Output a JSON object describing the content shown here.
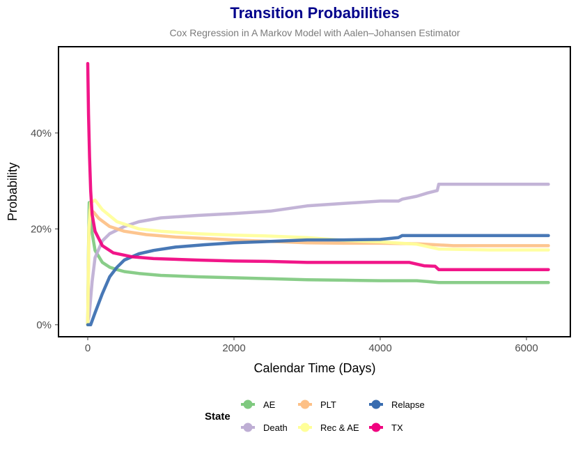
{
  "chart_data": {
    "type": "line",
    "title": "Transition Probabilities",
    "subtitle": "Cox Regression in A Markov Model with Aalen–Johansen Estimator",
    "xlabel": "Calendar Time (Days)",
    "ylabel": "Probability",
    "xlim": [
      -400,
      6600
    ],
    "ylim": [
      -0.025,
      0.58
    ],
    "x_ticks": [
      0,
      2000,
      4000,
      6000
    ],
    "x_tick_labels": [
      "0",
      "2000",
      "4000",
      "6000"
    ],
    "y_ticks": [
      0,
      0.2,
      0.4
    ],
    "y_tick_labels": [
      "0%",
      "20%",
      "40%"
    ],
    "grid": false,
    "legend": {
      "title": "State",
      "position": "bottom",
      "entries": [
        "AE",
        "Death",
        "PLT",
        "Rec & AE",
        "Relapse",
        "TX"
      ]
    },
    "series": [
      {
        "name": "AE",
        "color": "#7FC97F",
        "points": [
          [
            0,
            0.0
          ],
          [
            10,
            0.16
          ],
          [
            20,
            0.255
          ],
          [
            50,
            0.2
          ],
          [
            100,
            0.155
          ],
          [
            200,
            0.13
          ],
          [
            300,
            0.12
          ],
          [
            400,
            0.115
          ],
          [
            500,
            0.111
          ],
          [
            700,
            0.107
          ],
          [
            1000,
            0.103
          ],
          [
            1500,
            0.1
          ],
          [
            2000,
            0.098
          ],
          [
            2500,
            0.096
          ],
          [
            3000,
            0.094
          ],
          [
            3500,
            0.093
          ],
          [
            4000,
            0.092
          ],
          [
            4500,
            0.092
          ],
          [
            4650,
            0.09
          ],
          [
            4800,
            0.088
          ],
          [
            5500,
            0.088
          ],
          [
            6300,
            0.088
          ]
        ]
      },
      {
        "name": "Death",
        "color": "#BEAED4",
        "points": [
          [
            0,
            0.005
          ],
          [
            20,
            0.02
          ],
          [
            60,
            0.09
          ],
          [
            100,
            0.14
          ],
          [
            200,
            0.175
          ],
          [
            300,
            0.19
          ],
          [
            500,
            0.205
          ],
          [
            700,
            0.215
          ],
          [
            1000,
            0.223
          ],
          [
            1500,
            0.228
          ],
          [
            2000,
            0.232
          ],
          [
            2500,
            0.237
          ],
          [
            3000,
            0.248
          ],
          [
            3500,
            0.253
          ],
          [
            4000,
            0.258
          ],
          [
            4250,
            0.258
          ],
          [
            4300,
            0.262
          ],
          [
            4500,
            0.268
          ],
          [
            4650,
            0.275
          ],
          [
            4780,
            0.28
          ],
          [
            4800,
            0.293
          ],
          [
            5500,
            0.293
          ],
          [
            6300,
            0.293
          ]
        ]
      },
      {
        "name": "PLT",
        "color": "#FDC086",
        "points": [
          [
            0,
            0.0
          ],
          [
            15,
            0.18
          ],
          [
            30,
            0.24
          ],
          [
            80,
            0.235
          ],
          [
            150,
            0.222
          ],
          [
            300,
            0.205
          ],
          [
            500,
            0.195
          ],
          [
            800,
            0.188
          ],
          [
            1200,
            0.183
          ],
          [
            1600,
            0.18
          ],
          [
            2000,
            0.177
          ],
          [
            2500,
            0.174
          ],
          [
            3000,
            0.171
          ],
          [
            3500,
            0.17
          ],
          [
            4000,
            0.17
          ],
          [
            4500,
            0.169
          ],
          [
            5000,
            0.165
          ],
          [
            6300,
            0.165
          ]
        ]
      },
      {
        "name": "Rec & AE",
        "color": "#FFFF99",
        "points": [
          [
            0,
            0.0
          ],
          [
            15,
            0.2
          ],
          [
            40,
            0.255
          ],
          [
            100,
            0.26
          ],
          [
            200,
            0.24
          ],
          [
            400,
            0.215
          ],
          [
            700,
            0.2
          ],
          [
            1000,
            0.195
          ],
          [
            1500,
            0.19
          ],
          [
            2000,
            0.187
          ],
          [
            2500,
            0.185
          ],
          [
            3000,
            0.182
          ],
          [
            3500,
            0.176
          ],
          [
            4000,
            0.173
          ],
          [
            4500,
            0.168
          ],
          [
            4800,
            0.158
          ],
          [
            5500,
            0.156
          ],
          [
            6300,
            0.156
          ]
        ]
      },
      {
        "name": "Relapse",
        "color": "#386CB0",
        "points": [
          [
            0,
            0.0
          ],
          [
            40,
            0.0
          ],
          [
            100,
            0.025
          ],
          [
            200,
            0.065
          ],
          [
            300,
            0.1
          ],
          [
            400,
            0.12
          ],
          [
            500,
            0.135
          ],
          [
            700,
            0.148
          ],
          [
            900,
            0.155
          ],
          [
            1200,
            0.162
          ],
          [
            1600,
            0.167
          ],
          [
            2000,
            0.171
          ],
          [
            2500,
            0.174
          ],
          [
            3000,
            0.177
          ],
          [
            3500,
            0.177
          ],
          [
            4000,
            0.178
          ],
          [
            4250,
            0.182
          ],
          [
            4300,
            0.186
          ],
          [
            5000,
            0.186
          ],
          [
            6300,
            0.186
          ]
        ]
      },
      {
        "name": "TX",
        "color": "#F0027F",
        "points": [
          [
            0,
            0.545
          ],
          [
            10,
            0.44
          ],
          [
            25,
            0.35
          ],
          [
            40,
            0.28
          ],
          [
            60,
            0.23
          ],
          [
            100,
            0.195
          ],
          [
            200,
            0.165
          ],
          [
            350,
            0.15
          ],
          [
            600,
            0.142
          ],
          [
            900,
            0.138
          ],
          [
            1500,
            0.135
          ],
          [
            2000,
            0.133
          ],
          [
            2500,
            0.132
          ],
          [
            3000,
            0.13
          ],
          [
            3500,
            0.13
          ],
          [
            4000,
            0.13
          ],
          [
            4400,
            0.13
          ],
          [
            4600,
            0.123
          ],
          [
            4750,
            0.122
          ],
          [
            4800,
            0.115
          ],
          [
            5500,
            0.115
          ],
          [
            6300,
            0.115
          ]
        ]
      }
    ]
  }
}
